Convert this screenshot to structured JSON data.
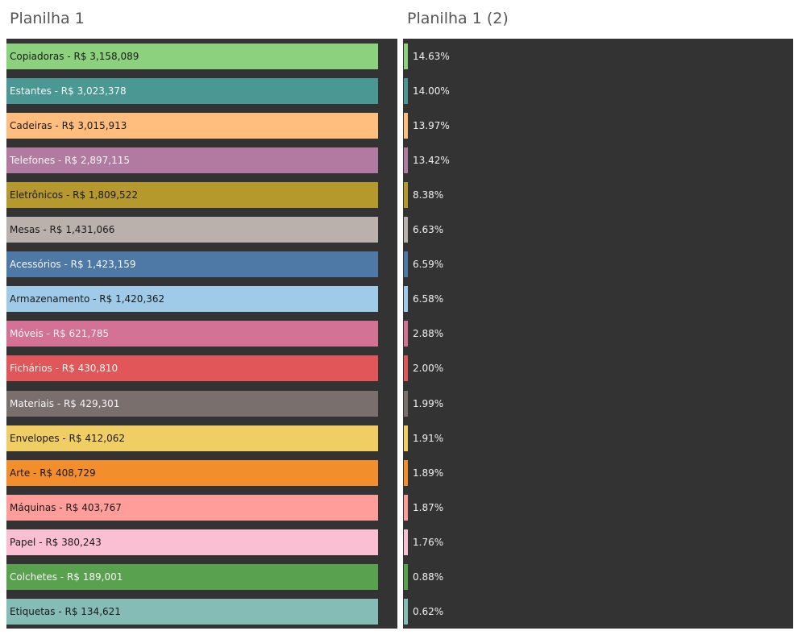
{
  "sheets": {
    "left_title": "Planilha 1",
    "right_title": "Planilha 1 (2)"
  },
  "chart_data": [
    {
      "type": "bar",
      "categories": [
        "Copiadoras",
        "Estantes",
        "Cadeiras",
        "Telefones",
        "Eletrônicos",
        "Mesas",
        "Acessórios",
        "Armazenamento",
        "Móveis",
        "Fichários",
        "Materiais",
        "Envelopes",
        "Arte",
        "Máquinas",
        "Papel",
        "Colchetes",
        "Etiquetas"
      ],
      "labels": [
        "Copiadoras - R$ 3,158,089",
        "Estantes - R$ 3,023,378",
        "Cadeiras - R$ 3,015,913",
        "Telefones - R$ 2,897,115",
        "Eletrônicos - R$ 1,809,522",
        "Mesas - R$ 1,431,066",
        "Acessórios - R$ 1,423,159",
        "Armazenamento - R$ 1,420,362",
        "Móveis - R$ 621,785",
        "Fichários - R$ 430,810",
        "Materiais - R$ 429,301",
        "Envelopes - R$ 412,062",
        "Arte - R$ 408,729",
        "Máquinas - R$ 403,767",
        "Papel - R$ 380,243",
        "Colchetes - R$ 189,001",
        "Etiquetas - R$ 134,621"
      ],
      "values": [
        3158089,
        3023378,
        3015913,
        2897115,
        1809522,
        1431066,
        1423159,
        1420362,
        621785,
        430810,
        429301,
        412062,
        408729,
        403767,
        380243,
        189001,
        134621
      ],
      "colors": [
        "#8cd17d",
        "#499894",
        "#ffbe7d",
        "#b07aa1",
        "#b6992d",
        "#bab0ac",
        "#4e79a7",
        "#a0cbe8",
        "#d37295",
        "#e15759",
        "#79706e",
        "#f1ce63",
        "#f28e2b",
        "#ff9d9a",
        "#fabfd2",
        "#59a14f",
        "#86bcb6"
      ],
      "label_colors": [
        "#1a1a1a",
        "#f5f5f5",
        "#1a1a1a",
        "#f5f5f5",
        "#1a1a1a",
        "#1a1a1a",
        "#f5f5f5",
        "#1a1a1a",
        "#f5f5f5",
        "#f5f5f5",
        "#f5f5f5",
        "#1a1a1a",
        "#1a1a1a",
        "#1a1a1a",
        "#1a1a1a",
        "#f5f5f5",
        "#1a1a1a"
      ]
    },
    {
      "type": "bar",
      "categories": [
        "Copiadoras",
        "Estantes",
        "Cadeiras",
        "Telefones",
        "Eletrônicos",
        "Mesas",
        "Acessórios",
        "Armazenamento",
        "Móveis",
        "Fichários",
        "Materiais",
        "Envelopes",
        "Arte",
        "Máquinas",
        "Papel",
        "Colchetes",
        "Etiquetas"
      ],
      "labels": [
        "14.63%",
        "14.00%",
        "13.97%",
        "13.42%",
        "8.38%",
        "6.63%",
        "6.59%",
        "6.58%",
        "2.88%",
        "2.00%",
        "1.99%",
        "1.91%",
        "1.89%",
        "1.87%",
        "1.76%",
        "0.88%",
        "0.62%"
      ],
      "values": [
        14.63,
        14.0,
        13.97,
        13.42,
        8.38,
        6.63,
        6.59,
        6.58,
        2.88,
        2.0,
        1.99,
        1.91,
        1.89,
        1.87,
        1.76,
        0.88,
        0.62
      ],
      "colors": [
        "#8cd17d",
        "#499894",
        "#ffbe7d",
        "#b07aa1",
        "#b6992d",
        "#bab0ac",
        "#4e79a7",
        "#a0cbe8",
        "#d37295",
        "#e15759",
        "#79706e",
        "#f1ce63",
        "#f28e2b",
        "#ff9d9a",
        "#fabfd2",
        "#59a14f",
        "#86bcb6"
      ]
    }
  ]
}
